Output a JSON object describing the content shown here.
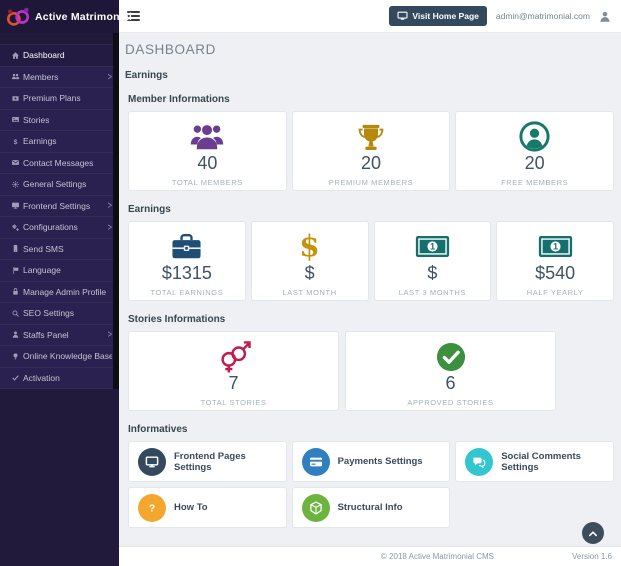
{
  "brand": {
    "name": "Active Matrimonial"
  },
  "topbar": {
    "visit_home_label": "Visit Home Page",
    "admin_email": "admin@matrimonial.com"
  },
  "sidebar": {
    "items": [
      {
        "label": "Dashboard",
        "icon": "home",
        "active": true,
        "has_submenu": false
      },
      {
        "label": "Members",
        "icon": "users",
        "has_submenu": true
      },
      {
        "label": "Premium Plans",
        "icon": "premium",
        "has_submenu": false
      },
      {
        "label": "Stories",
        "icon": "stories",
        "has_submenu": false
      },
      {
        "label": "Earnings",
        "icon": "dollar",
        "has_submenu": false
      },
      {
        "label": "Contact Messages",
        "icon": "envelope",
        "has_submenu": false
      },
      {
        "label": "General Settings",
        "icon": "gear",
        "has_submenu": false
      },
      {
        "label": "Frontend Settings",
        "icon": "monitor",
        "has_submenu": true
      },
      {
        "label": "Configurations",
        "icon": "cogs",
        "has_submenu": true
      },
      {
        "label": "Send SMS",
        "icon": "mobile",
        "has_submenu": false
      },
      {
        "label": "Language",
        "icon": "flag",
        "has_submenu": false
      },
      {
        "label": "Manage Admin Profile",
        "icon": "lock",
        "has_submenu": false
      },
      {
        "label": "SEO Settings",
        "icon": "search",
        "has_submenu": false
      },
      {
        "label": "Staffs Panel",
        "icon": "staff",
        "has_submenu": true
      },
      {
        "label": "Online Knowledge Base",
        "icon": "bulb",
        "has_submenu": false
      },
      {
        "label": "Activation",
        "icon": "check",
        "has_submenu": false
      }
    ]
  },
  "main": {
    "page_title": "DASHBOARD",
    "section_title": "Earnings",
    "groups": [
      {
        "id": "members",
        "title": "Member Informations",
        "cards": [
          {
            "icon": "users-group",
            "icon_color": "#6a3d8f",
            "value": "40",
            "label": "TOTAL MEMBERS"
          },
          {
            "icon": "trophy",
            "icon_color": "#b5880f",
            "value": "20",
            "label": "PREMIUM MEMBERS"
          },
          {
            "icon": "user-circle",
            "icon_color": "#17796a",
            "value": "20",
            "label": "FREE MEMBERS"
          }
        ]
      },
      {
        "id": "earnings",
        "title": "Earnings",
        "cards": [
          {
            "icon": "briefcase",
            "icon_color": "#1f4e75",
            "value": "$1315",
            "label": "TOTAL EARNINGS"
          },
          {
            "icon": "dollar-big",
            "icon_color": "#c3940f",
            "value": "$",
            "label": "LAST MONTH"
          },
          {
            "icon": "money-bill",
            "icon_color": "#156f6c",
            "value": "$",
            "label": "LAST 3 MONTHS"
          },
          {
            "icon": "money-bill",
            "icon_color": "#156f6c",
            "value": "$540",
            "label": "HALF YEARLY"
          }
        ]
      },
      {
        "id": "stories",
        "title": "Stories Informations",
        "cards": [
          {
            "icon": "venus-mars",
            "icon_color": "#bf1d4e",
            "value": "7",
            "label": "TOTAL STORIES"
          },
          {
            "icon": "check-circle",
            "icon_color": "#3c9140",
            "value": "6",
            "label": "APPROVED STORIES"
          }
        ]
      }
    ],
    "informatives": {
      "title": "Informatives",
      "cards": [
        {
          "icon": "monitor",
          "circle_color": "#34495e",
          "label": "Frontend Pages Settings"
        },
        {
          "icon": "credit-card",
          "circle_color": "#2f7fc1",
          "label": "Payments Settings"
        },
        {
          "icon": "comments",
          "circle_color": "#32c6cf",
          "label": "Social Comments Settings"
        },
        {
          "icon": "question",
          "circle_color": "#f3a72e",
          "label": "How To"
        },
        {
          "icon": "cube",
          "circle_color": "#6cb33f",
          "label": "Structural Info"
        }
      ]
    }
  },
  "footer": {
    "copyright": "© 2018 Active Matrimonial CMS",
    "version": "Version 1.6"
  }
}
